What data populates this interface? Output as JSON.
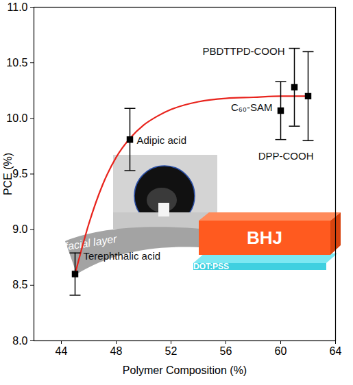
{
  "chart_data": {
    "type": "scatter",
    "x_label": "Polymer Composition (%)",
    "y_label": "PCE (%)",
    "labels": [
      "Terephthalic acid",
      "Adipic acid",
      "C₆₀-SAM",
      "PBDTTPD-COOH",
      "DPP-COOH"
    ],
    "x": [
      45,
      49,
      60,
      61,
      62
    ],
    "values": [
      8.6,
      9.81,
      10.07,
      10.28,
      10.2
    ],
    "errors": [
      0.19,
      0.28,
      0.26,
      0.35,
      0.4
    ],
    "color": "#000000",
    "marker": "square",
    "fit_curve": {
      "color": "#e8231c",
      "line_style": "solid",
      "x": [
        45,
        46,
        47,
        48,
        49,
        50,
        51,
        52,
        54,
        56,
        58,
        60,
        62
      ],
      "values": [
        8.6,
        9.05,
        9.4,
        9.65,
        9.82,
        9.94,
        10.02,
        10.08,
        10.15,
        10.18,
        10.19,
        10.2,
        10.2
      ]
    },
    "xlim": [
      42,
      64
    ],
    "xticks": [
      44,
      48,
      52,
      56,
      60,
      64
    ],
    "ylim": [
      8,
      11
    ],
    "yticks": [
      {
        "value": 8,
        "label": "8.0"
      },
      8.5,
      {
        "value": 9,
        "label": "9.0"
      },
      9.5,
      {
        "value": 10,
        "label": "10.0"
      },
      10.5,
      {
        "value": 11,
        "label": "11.0"
      }
    ],
    "grid": false,
    "inset": {
      "interfacial_layer": "interfacial layer",
      "active_layer": "BHJ",
      "substrate": "PEDOT:PSS"
    }
  }
}
